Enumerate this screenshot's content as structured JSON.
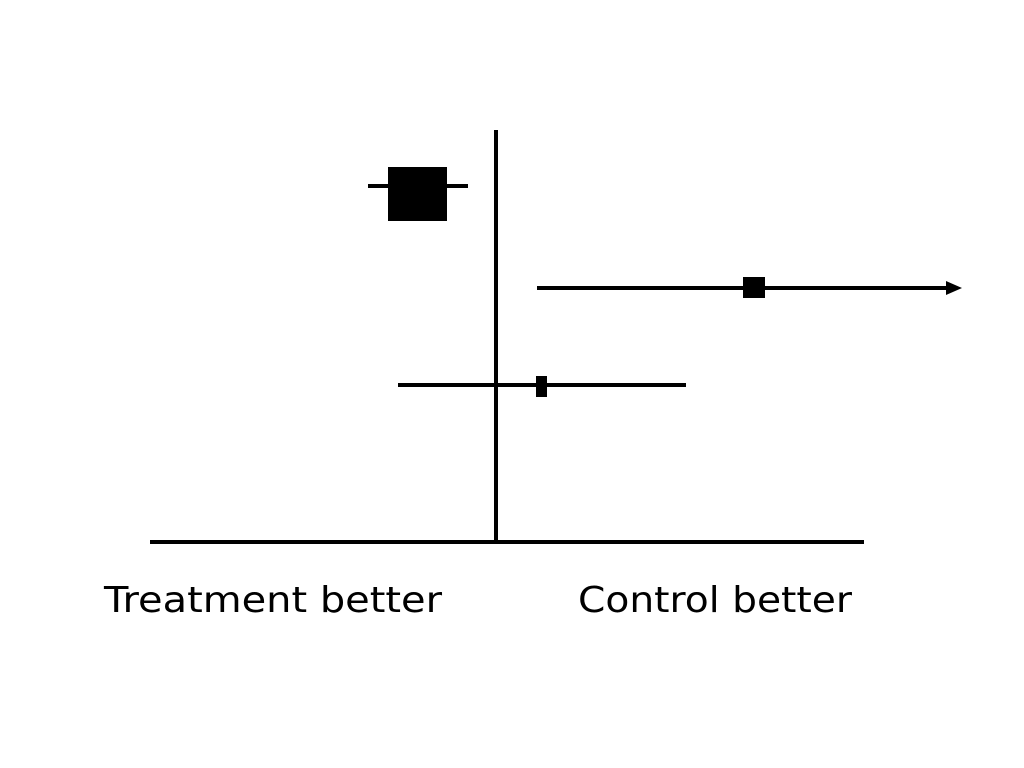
{
  "labels": {
    "left": "Treatment better",
    "right": "Control better"
  }
}
